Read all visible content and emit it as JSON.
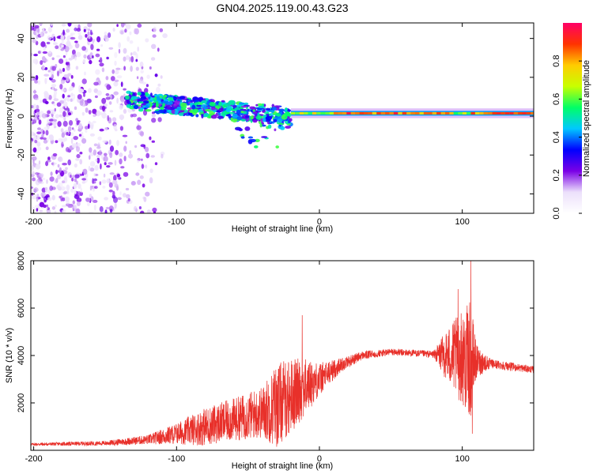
{
  "title": "GN04.2025.119.00.43.G23",
  "chart_data": [
    {
      "type": "heatmap",
      "name": "spectrogram",
      "xlabel": "Height of straight line (km)",
      "ylabel": "Frequency (Hz)",
      "xlim": [
        -202,
        150
      ],
      "ylim": [
        -50,
        48
      ],
      "x_ticks": [
        -200,
        -100,
        0,
        100
      ],
      "y_ticks": [
        -40,
        -20,
        0,
        20,
        40
      ],
      "colorbar": {
        "label": "Normalized spectral amplitude",
        "range": [
          0.0,
          1.0
        ],
        "ticks": [
          0.0,
          0.2,
          0.4,
          0.6,
          0.8
        ],
        "colors": [
          "#ffffff",
          "#ece0fb",
          "#7a00e6",
          "#0000ff",
          "#00c8ff",
          "#00ff66",
          "#c8ff00",
          "#ffcc00",
          "#ff3300",
          "#ff0066"
        ]
      },
      "features": {
        "noise_region_km": [
          -202,
          -108
        ],
        "scattered_energy_km": [
          -135,
          -20
        ],
        "scattered_freq_center_hz": [
          8,
          0
        ],
        "strong_line_km": [
          -20,
          150
        ],
        "strong_line_freq_hz": 1.5
      }
    },
    {
      "type": "line",
      "name": "snr",
      "xlabel": "Height of straight line (km)",
      "ylabel": "SNR (10 * v/v)",
      "xlim": [
        -202,
        150
      ],
      "ylim": [
        0,
        8000
      ],
      "x_ticks": [
        -200,
        -100,
        0,
        100
      ],
      "y_ticks": [
        2000,
        4000,
        6000,
        8000
      ],
      "color": "#e8302a",
      "envelope_x": [
        -202,
        -150,
        -120,
        -100,
        -80,
        -60,
        -40,
        -30,
        -20,
        -12,
        0,
        15,
        30,
        50,
        80,
        90,
        100,
        106,
        110,
        120,
        150
      ],
      "envelope_y": [
        250,
        300,
        450,
        700,
        1000,
        1300,
        1600,
        1900,
        2300,
        2600,
        3000,
        3600,
        4000,
        4150,
        4050,
        4000,
        3900,
        3800,
        3750,
        3650,
        3400
      ],
      "noise_amplitude": [
        60,
        100,
        200,
        450,
        800,
        900,
        1100,
        1800,
        1600,
        1300,
        700,
        300,
        180,
        150,
        150,
        1200,
        2000,
        2500,
        700,
        200,
        150
      ],
      "peaks": [
        {
          "x": -12,
          "y": 5700
        },
        {
          "x": 97,
          "y": 6800
        },
        {
          "x": 106,
          "y": 8000
        },
        {
          "x": 107,
          "y": 700
        }
      ]
    }
  ]
}
